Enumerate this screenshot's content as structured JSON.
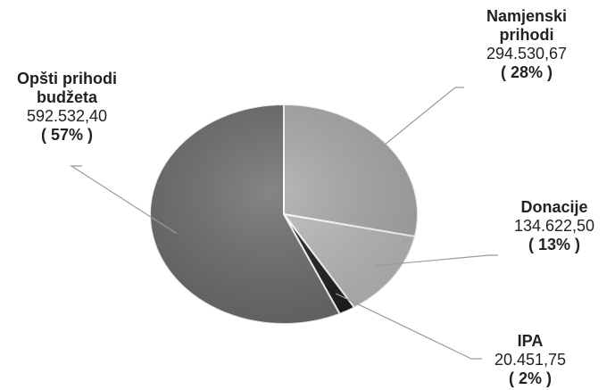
{
  "chart_data": {
    "type": "pie",
    "series": [
      {
        "name": "Pie",
        "slices": [
          {
            "label_lines": [
              "Namjenski",
              "prihodi"
            ],
            "value": 294530.67,
            "value_label": "294.530,67",
            "pct_label": "( 28% )",
            "color": "#a9a9a9"
          },
          {
            "label_lines": [
              "Donacije"
            ],
            "value": 134622.5,
            "value_label": "134.622,50",
            "pct_label": "( 13% )",
            "color": "#b9b9b9"
          },
          {
            "label_lines": [
              "IPA"
            ],
            "value": 20451.75,
            "value_label": "20.451,75",
            "pct_label": "( 2% )",
            "color": "#1c1c1c"
          },
          {
            "label_lines": [
              "Opšti prihodi",
              "budžeta"
            ],
            "value": 592532.4,
            "value_label": "592.532,40",
            "pct_label": "( 57% )",
            "color": "#6b6b6b"
          }
        ]
      }
    ],
    "legend": "none",
    "labels": "outside with leader lines"
  }
}
